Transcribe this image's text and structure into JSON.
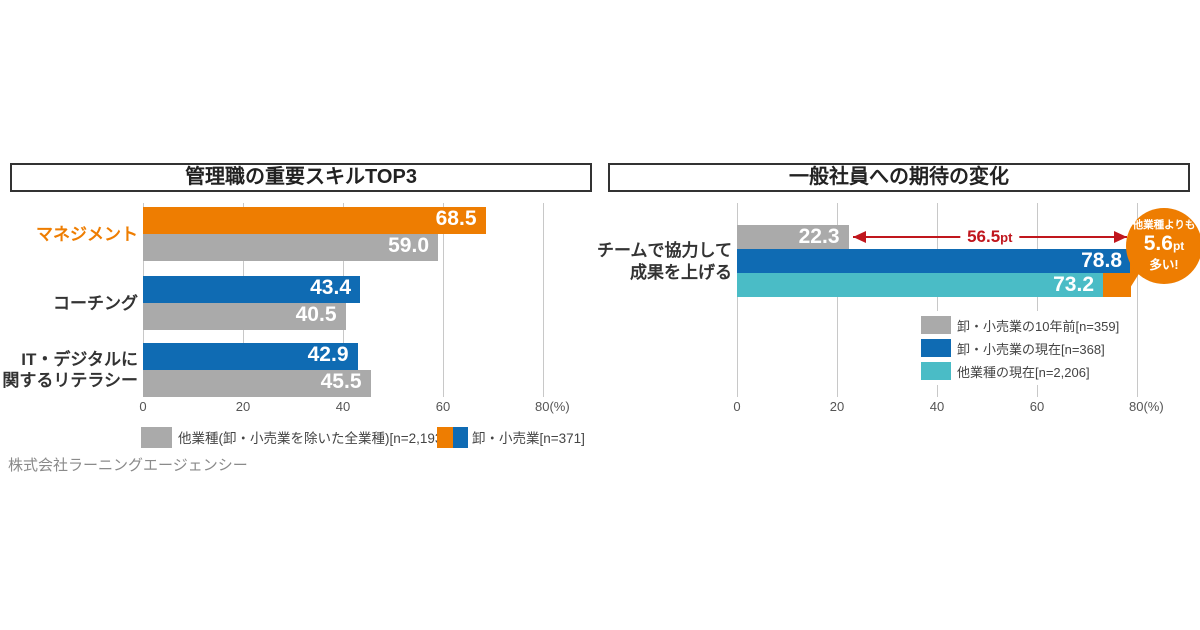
{
  "footer": "株式会社ラーニングエージェンシー",
  "colors": {
    "orange": "#ee7d01",
    "blue": "#0f6bb3",
    "gray": "#aaaaaa",
    "cyan": "#4abcc6",
    "red": "#c0161d",
    "grid": "#c8c8c8",
    "axis_text": "#555555",
    "label_text": "#333333",
    "legend_text": "#444444",
    "footer_text": "#8a8a8a",
    "value_text": "#ffffff"
  },
  "left_chart": {
    "title": "管理職の重要スキルTOP3",
    "tick_labels": [
      "0",
      "20",
      "40",
      "60",
      "80(%)"
    ],
    "rows": [
      {
        "label_lines": [
          "マネジメント"
        ],
        "label_color": "orange",
        "bars": [
          {
            "value": 68.5,
            "text": "68.5",
            "color": "orange"
          },
          {
            "value": 59.0,
            "text": "59.0",
            "color": "gray"
          }
        ]
      },
      {
        "label_lines": [
          "コーチング"
        ],
        "label_color": "label_text",
        "bars": [
          {
            "value": 43.4,
            "text": "43.4",
            "color": "blue"
          },
          {
            "value": 40.5,
            "text": "40.5",
            "color": "gray"
          }
        ]
      },
      {
        "label_lines": [
          "IT・デジタルに",
          "関するリテラシー"
        ],
        "label_color": "label_text",
        "bars": [
          {
            "value": 42.9,
            "text": "42.9",
            "color": "blue"
          },
          {
            "value": 45.5,
            "text": "45.5",
            "color": "gray"
          }
        ]
      }
    ],
    "legend": [
      {
        "swatch": [
          "gray"
        ],
        "label": "他業種(卸・小売業を除いた全業種)[n=2,193]"
      },
      {
        "swatch": [
          "orange",
          "blue"
        ],
        "label": "卸・小売業[n=371]"
      }
    ]
  },
  "right_chart": {
    "title": "一般社員への期待の変化",
    "tick_labels": [
      "0",
      "20",
      "40",
      "60",
      "80(%)"
    ],
    "category_lines": [
      "チームで協力して",
      "成果を上げる"
    ],
    "bars": [
      {
        "value": 22.3,
        "text": "22.3",
        "color": "gray",
        "legend": "卸・小売業の10年前[n=359]"
      },
      {
        "value": 78.8,
        "text": "78.8",
        "color": "blue",
        "legend": "卸・小売業の現在[n=368]"
      },
      {
        "value": 73.2,
        "text": "73.2",
        "color": "cyan",
        "legend": "他業種の現在[n=2,206]"
      }
    ],
    "highlight": {
      "from": 73.2,
      "to": 78.8,
      "color": "orange"
    },
    "arrow": {
      "from": 22.3,
      "to": 78.8,
      "text_main": "56.5",
      "text_unit": "pt",
      "color": "red"
    },
    "bubble": {
      "line1": "他業種よりも",
      "big": "5.6",
      "unit": "pt",
      "line2": "多い!",
      "color": "orange"
    }
  },
  "chart_data": [
    {
      "type": "bar",
      "orientation": "horizontal",
      "title": "管理職の重要スキルTOP3",
      "categories": [
        "マネジメント",
        "コーチング",
        "IT・デジタルに関するリテラシー"
      ],
      "series": [
        {
          "name": "卸・小売業[n=371]",
          "values": [
            68.5,
            43.4,
            42.9
          ],
          "colors": [
            "#ee7d01",
            "#0f6bb3",
            "#0f6bb3"
          ]
        },
        {
          "name": "他業種(卸・小売業を除いた全業種)[n=2,193]",
          "values": [
            59.0,
            40.5,
            45.5
          ],
          "colors": [
            "#aaaaaa",
            "#aaaaaa",
            "#aaaaaa"
          ]
        }
      ],
      "xlabel": "",
      "ylabel": "",
      "unit": "%",
      "xlim": [
        0,
        80
      ],
      "ticks": [
        0,
        20,
        40,
        60,
        80
      ],
      "grid": true,
      "legend_position": "bottom"
    },
    {
      "type": "bar",
      "orientation": "horizontal",
      "title": "一般社員への期待の変化",
      "categories": [
        "チームで協力して成果を上げる"
      ],
      "series": [
        {
          "name": "卸・小売業の10年前[n=359]",
          "values": [
            22.3
          ],
          "colors": [
            "#aaaaaa"
          ]
        },
        {
          "name": "卸・小売業の現在[n=368]",
          "values": [
            78.8
          ],
          "colors": [
            "#0f6bb3"
          ]
        },
        {
          "name": "他業種の現在[n=2,206]",
          "values": [
            73.2
          ],
          "colors": [
            "#4abcc6"
          ]
        }
      ],
      "xlabel": "",
      "ylabel": "",
      "unit": "%",
      "xlim": [
        0,
        80
      ],
      "ticks": [
        0,
        20,
        40,
        60,
        80
      ],
      "grid": true,
      "legend_position": "inside-bottom-right",
      "annotations": [
        {
          "type": "double-arrow",
          "label": "56.5pt",
          "from": 22.3,
          "to": 78.8
        },
        {
          "type": "highlight-segment",
          "from": 73.2,
          "to": 78.8,
          "color": "#ee7d01"
        },
        {
          "type": "callout-bubble",
          "label": "他業種よりも5.6pt多い!",
          "color": "#ee7d01"
        }
      ]
    }
  ]
}
